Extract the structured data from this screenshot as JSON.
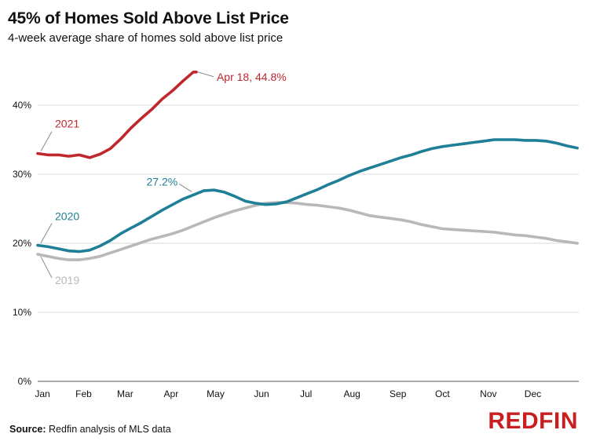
{
  "header": {
    "title": "45% of Homes Sold Above List Price",
    "subtitle": "4-week average share of homes sold above list price"
  },
  "footer": {
    "source_label": "Source:",
    "source_text": "Redfin analysis of MLS data",
    "logo": "REDFIN"
  },
  "colors": {
    "s2021": "#c0272d",
    "s2020": "#1f7f96",
    "s2019": "#b8b8b8",
    "grid": "#d9d9d9",
    "text": "#111111"
  },
  "chart_data": {
    "type": "line",
    "title": "45% of Homes Sold Above List Price",
    "subtitle": "4-week average share of homes sold above list price",
    "xlabel": "",
    "ylabel": "",
    "ylim": [
      0,
      45
    ],
    "yticks": [
      0,
      10,
      20,
      30,
      40
    ],
    "ytick_labels": [
      "0%",
      "10%",
      "20%",
      "30%",
      "40%"
    ],
    "grid": true,
    "x_unit": "week of year (day offset from Jan 1)",
    "xlim": [
      0,
      365
    ],
    "xticks": [
      {
        "label": "Jan",
        "x": 0
      },
      {
        "label": "Feb",
        "x": 31
      },
      {
        "label": "Mar",
        "x": 59
      },
      {
        "label": "Apr",
        "x": 90
      },
      {
        "label": "May",
        "x": 120
      },
      {
        "label": "Jun",
        "x": 151
      },
      {
        "label": "Jul",
        "x": 181
      },
      {
        "label": "Aug",
        "x": 212
      },
      {
        "label": "Sep",
        "x": 243
      },
      {
        "label": "Oct",
        "x": 273
      },
      {
        "label": "Nov",
        "x": 304
      },
      {
        "label": "Dec",
        "x": 334
      }
    ],
    "series": [
      {
        "name": "2021",
        "color_key": "s2021",
        "x": [
          0,
          7,
          14,
          21,
          28,
          35,
          42,
          49,
          56,
          63,
          70,
          77,
          84,
          91,
          98,
          105,
          107
        ],
        "y": [
          33.0,
          32.8,
          32.8,
          32.6,
          32.8,
          32.4,
          32.9,
          33.7,
          35.1,
          36.7,
          38.1,
          39.4,
          40.9,
          42.1,
          43.5,
          44.8,
          44.8
        ]
      },
      {
        "name": "2020",
        "color_key": "s2020",
        "x": [
          0,
          7,
          14,
          21,
          28,
          35,
          42,
          49,
          56,
          63,
          70,
          77,
          84,
          91,
          98,
          105,
          112,
          119,
          126,
          133,
          140,
          147,
          154,
          161,
          168,
          175,
          182,
          189,
          196,
          203,
          210,
          217,
          224,
          231,
          238,
          245,
          252,
          259,
          266,
          273,
          280,
          287,
          294,
          301,
          308,
          315,
          322,
          329,
          336,
          343,
          350,
          357,
          364
        ],
        "y": [
          19.7,
          19.5,
          19.2,
          18.9,
          18.8,
          19.0,
          19.6,
          20.4,
          21.4,
          22.2,
          23.0,
          23.9,
          24.8,
          25.6,
          26.4,
          27.0,
          27.6,
          27.7,
          27.4,
          26.8,
          26.1,
          25.8,
          25.6,
          25.7,
          26.0,
          26.6,
          27.2,
          27.8,
          28.5,
          29.1,
          29.8,
          30.4,
          30.9,
          31.4,
          31.9,
          32.4,
          32.8,
          33.3,
          33.7,
          34.0,
          34.2,
          34.4,
          34.6,
          34.8,
          35.0,
          35.0,
          35.0,
          34.9,
          34.9,
          34.8,
          34.5,
          34.1,
          33.8
        ]
      },
      {
        "name": "2019",
        "color_key": "s2019",
        "x": [
          0,
          7,
          14,
          21,
          28,
          35,
          42,
          49,
          56,
          63,
          70,
          77,
          84,
          91,
          98,
          105,
          112,
          119,
          126,
          133,
          140,
          147,
          154,
          161,
          168,
          175,
          182,
          189,
          196,
          203,
          210,
          217,
          224,
          231,
          238,
          245,
          252,
          259,
          266,
          273,
          280,
          287,
          294,
          301,
          308,
          315,
          322,
          329,
          336,
          343,
          350,
          357,
          364
        ],
        "y": [
          18.4,
          18.1,
          17.8,
          17.6,
          17.6,
          17.8,
          18.1,
          18.6,
          19.1,
          19.6,
          20.1,
          20.6,
          21.0,
          21.4,
          21.9,
          22.5,
          23.1,
          23.7,
          24.2,
          24.7,
          25.1,
          25.5,
          25.8,
          25.9,
          25.9,
          25.8,
          25.6,
          25.5,
          25.3,
          25.1,
          24.8,
          24.4,
          24.0,
          23.8,
          23.6,
          23.4,
          23.1,
          22.7,
          22.4,
          22.1,
          22.0,
          21.9,
          21.8,
          21.7,
          21.6,
          21.4,
          21.2,
          21.1,
          20.9,
          20.7,
          20.4,
          20.2,
          20.0
        ]
      }
    ],
    "annotations": [
      {
        "text": "Apr 18, 44.8%",
        "series": "2021",
        "color_key": "s2021"
      },
      {
        "text": "27.2%",
        "series": "2020",
        "color_key": "s2020"
      },
      {
        "text": "2021",
        "series": "2021",
        "color_key": "s2021"
      },
      {
        "text": "2020",
        "series": "2020",
        "color_key": "s2020"
      },
      {
        "text": "2019",
        "series": "2019",
        "color_key": "s2019"
      }
    ]
  }
}
